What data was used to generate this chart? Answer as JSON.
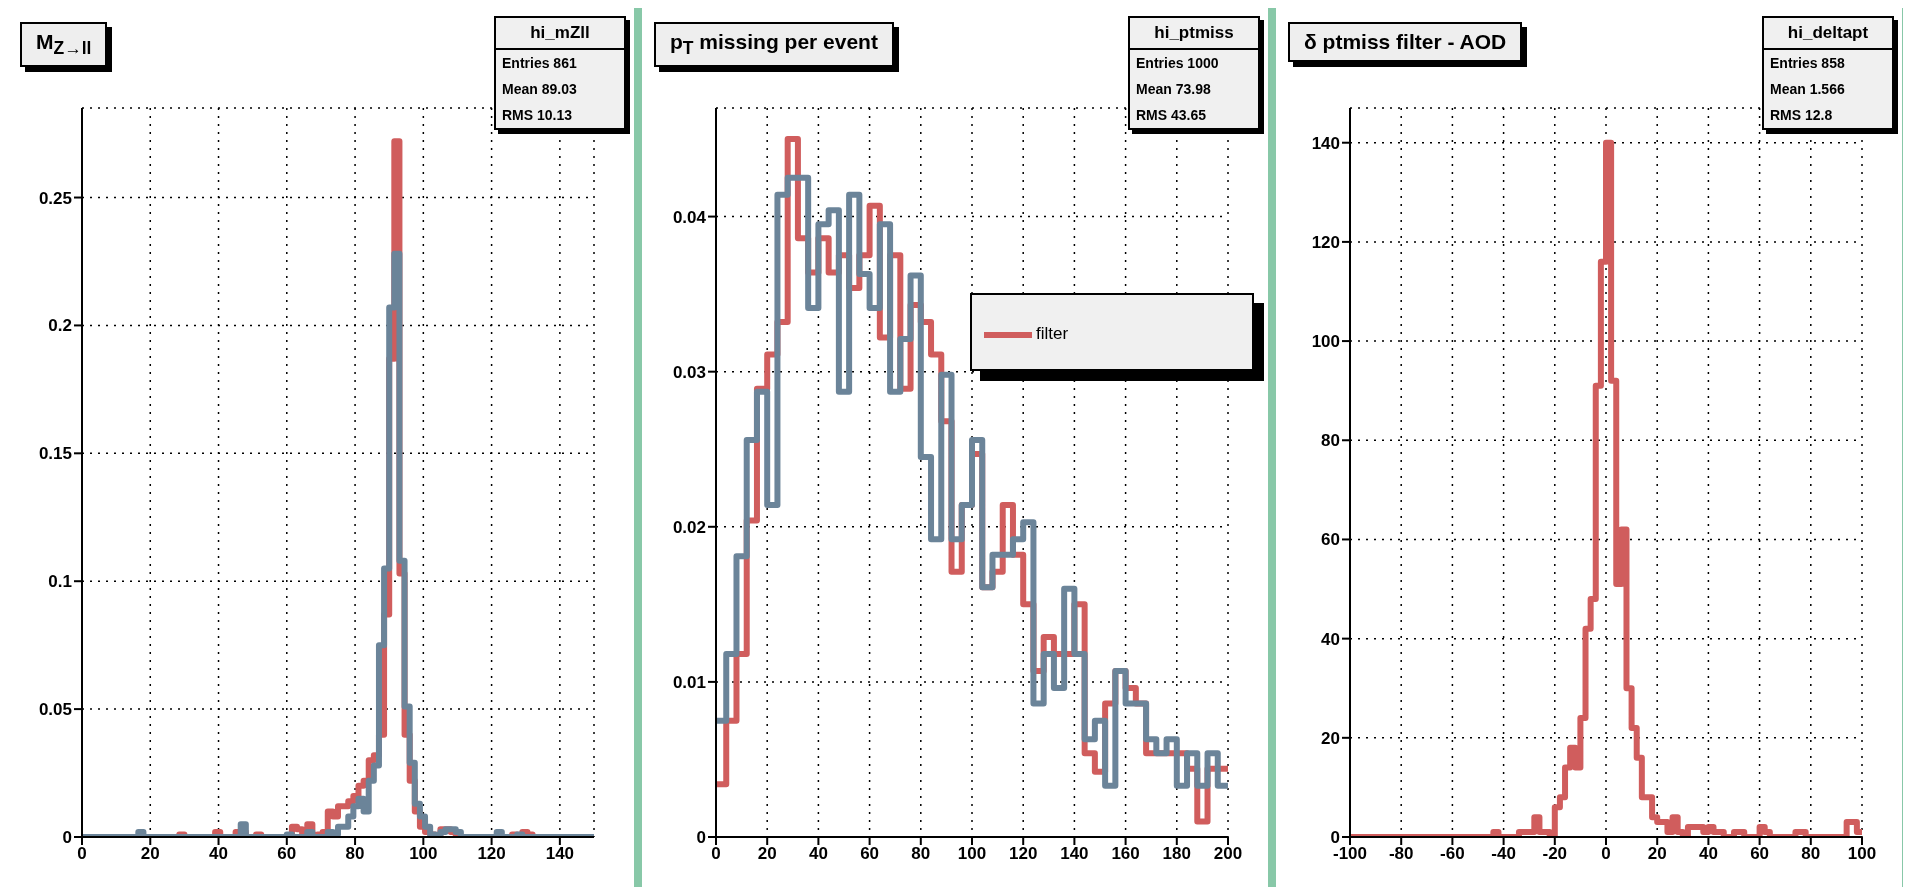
{
  "chart_data": [
    {
      "type": "histogram",
      "title": "M$_{Z→ll}$",
      "annotations": [
        "hi_mZll",
        "Entries 861",
        "Mean 89.03",
        "RMS 10.13"
      ],
      "xlim": [
        0,
        150
      ],
      "xticks": [
        0,
        20,
        40,
        60,
        80,
        100,
        120,
        140
      ],
      "ylim": [
        0,
        0.285
      ],
      "yticks": [
        0,
        0.05,
        0.1,
        0.15,
        0.2,
        0.25
      ],
      "grid": true,
      "bins": [
        0,
        1.5,
        3,
        4.5,
        6,
        7.5,
        9,
        10.5,
        12,
        13.5,
        15,
        16.5,
        18,
        19.5,
        21,
        22.5,
        24,
        25.5,
        27,
        28.5,
        30,
        31.5,
        33,
        34.5,
        36,
        37.5,
        39,
        40.5,
        42,
        43.5,
        45,
        46.5,
        48,
        49.5,
        51,
        52.5,
        54,
        55.5,
        57,
        58.5,
        60,
        61.5,
        63,
        64.5,
        66,
        67.5,
        69,
        70.5,
        72,
        73.5,
        75,
        76.5,
        78,
        79.5,
        81,
        82.5,
        84,
        85.5,
        87,
        88.5,
        90,
        91.5,
        93,
        94.5,
        96,
        97.5,
        99,
        100.5,
        102,
        103.5,
        105,
        106.5,
        108,
        109.5,
        111,
        112.5,
        114,
        115.5,
        117,
        118.5,
        120,
        121.5,
        123,
        124.5,
        126,
        127.5,
        129,
        130.5,
        132,
        133.5,
        135,
        136.5,
        138,
        139.5,
        141,
        142.5,
        144,
        145.5,
        147,
        148.5,
        150
      ],
      "series": [
        {
          "color": "#d05d5d",
          "values": [
            0,
            0,
            0,
            0,
            0,
            0,
            0,
            0,
            0,
            0,
            0,
            0,
            0,
            0,
            0,
            0,
            0,
            0,
            0,
            0.001,
            0,
            0,
            0,
            0,
            0,
            0,
            0.002,
            0,
            0,
            0,
            0.002,
            0.002,
            0,
            0,
            0.001,
            0,
            0,
            0,
            0,
            0,
            0,
            0.004,
            0.003,
            0,
            0.005,
            0,
            0.001,
            0.002,
            0.01,
            0.008,
            0.012,
            0.012,
            0.014,
            0.016,
            0.02,
            0.022,
            0.03,
            0.032,
            0.04,
            0.087,
            0.187,
            0.272,
            0.103,
            0.04,
            0.022,
            0.01,
            0.004,
            0.002,
            0.001,
            0,
            0.003,
            0.003,
            0.002,
            0,
            0,
            0,
            0,
            0,
            0,
            0,
            0,
            0,
            0,
            0,
            0.001,
            0,
            0.002,
            0.001,
            0,
            0,
            0,
            0,
            0,
            0,
            0,
            0,
            0,
            0,
            0,
            0
          ]
        },
        {
          "color": "#6b8499",
          "values": [
            0,
            0,
            0,
            0,
            0,
            0,
            0,
            0,
            0,
            0,
            0,
            0.002,
            0,
            0,
            0,
            0,
            0,
            0,
            0,
            0,
            0,
            0,
            0,
            0,
            0,
            0,
            0,
            0,
            0,
            0,
            0,
            0.005,
            0,
            0,
            0,
            0,
            0,
            0,
            0,
            0,
            0.001,
            0,
            0,
            0,
            0.002,
            0,
            0,
            0,
            0.002,
            0.001,
            0.004,
            0.004,
            0.008,
            0.012,
            0.015,
            0.01,
            0.022,
            0.028,
            0.075,
            0.105,
            0.207,
            0.228,
            0.108,
            0.051,
            0.029,
            0.013,
            0.008,
            0.004,
            0.001,
            0,
            0.002,
            0.003,
            0.003,
            0.002,
            0,
            0,
            0,
            0,
            0,
            0,
            0,
            0.002,
            0,
            0,
            0,
            0.001,
            0,
            0,
            0,
            0,
            0,
            0,
            0,
            0,
            0,
            0,
            0,
            0,
            0,
            0
          ]
        }
      ]
    },
    {
      "type": "histogram",
      "title": "p$_{T}$ missing per event",
      "annotations": [
        "hi_ptmiss",
        "Entries 1000",
        "Mean 73.98",
        "RMS 43.65"
      ],
      "xlim": [
        0,
        200
      ],
      "xticks": [
        0,
        20,
        40,
        60,
        80,
        100,
        120,
        140,
        160,
        180,
        200
      ],
      "ylim": [
        0,
        0.047
      ],
      "yticks": [
        0,
        0.01,
        0.02,
        0.03,
        0.04
      ],
      "grid": true,
      "legend": "top right",
      "bins": [
        0,
        4,
        8,
        12,
        16,
        20,
        24,
        28,
        32,
        36,
        40,
        44,
        48,
        52,
        56,
        60,
        64,
        68,
        72,
        76,
        80,
        84,
        88,
        92,
        96,
        100,
        104,
        108,
        112,
        116,
        120,
        124,
        128,
        132,
        136,
        140,
        144,
        148,
        152,
        156,
        160,
        164,
        168,
        172,
        176,
        180,
        184,
        188,
        192,
        196,
        200
      ],
      "series": [
        {
          "name": "filter",
          "color": "#d05d5d",
          "values": [
            0.0034,
            0.0075,
            0.0118,
            0.0204,
            0.0289,
            0.0311,
            0.0332,
            0.045,
            0.0386,
            0.0364,
            0.0386,
            0.0364,
            0.0375,
            0.0354,
            0.0375,
            0.0407,
            0.0322,
            0.0375,
            0.0289,
            0.0343,
            0.0332,
            0.0311,
            0.0268,
            0.0171,
            0.0214,
            0.0247,
            0.0161,
            0.0171,
            0.0214,
            0.0182,
            0.015,
            0.0107,
            0.0129,
            0.0118,
            0.0118,
            0.015,
            0.0054,
            0.0042,
            0.0086,
            0.0107,
            0.0096,
            0.0086,
            0.0054,
            0.0054,
            0.0054,
            0.0054,
            0.0044,
            0.001,
            0.0044,
            0.0044
          ]
        },
        {
          "color": "#6b8499",
          "values": [
            0.0075,
            0.0118,
            0.0181,
            0.0256,
            0.0287,
            0.0214,
            0.0414,
            0.0425,
            0.0425,
            0.0341,
            0.0395,
            0.0404,
            0.0287,
            0.0414,
            0.0363,
            0.0341,
            0.0395,
            0.0287,
            0.0321,
            0.0362,
            0.0245,
            0.0192,
            0.0298,
            0.0192,
            0.0214,
            0.0256,
            0.0161,
            0.0182,
            0.0182,
            0.0192,
            0.0203,
            0.0086,
            0.0118,
            0.0096,
            0.016,
            0.0118,
            0.0063,
            0.0075,
            0.0033,
            0.0107,
            0.0086,
            0.0086,
            0.0063,
            0.0054,
            0.0063,
            0.0033,
            0.0054,
            0.0033,
            0.0054,
            0.0033
          ]
        }
      ]
    },
    {
      "type": "histogram",
      "title": "δ ptmiss filter - AOD",
      "annotations": [
        "hi_deltapt",
        "Entries 858",
        "Mean 1.566",
        "RMS 12.8"
      ],
      "xlim": [
        -100,
        100
      ],
      "xticks": [
        -100,
        -80,
        -60,
        -40,
        -20,
        0,
        20,
        40,
        60,
        80,
        100
      ],
      "ylim": [
        0,
        147
      ],
      "yticks": [
        0,
        20,
        40,
        60,
        80,
        100,
        120,
        140
      ],
      "grid": true,
      "color": "#d05d5d",
      "bins": [
        -100,
        -98,
        -96,
        -94,
        -92,
        -90,
        -88,
        -86,
        -84,
        -82,
        -80,
        -78,
        -76,
        -74,
        -72,
        -70,
        -68,
        -66,
        -64,
        -62,
        -60,
        -58,
        -56,
        -54,
        -52,
        -50,
        -48,
        -46,
        -44,
        -42,
        -40,
        -38,
        -36,
        -34,
        -32,
        -30,
        -28,
        -26,
        -24,
        -22,
        -20,
        -18,
        -16,
        -14,
        -12,
        -10,
        -8,
        -6,
        -4,
        -2,
        0,
        2,
        4,
        6,
        8,
        10,
        12,
        14,
        16,
        18,
        20,
        22,
        24,
        26,
        28,
        30,
        32,
        34,
        36,
        38,
        40,
        42,
        44,
        46,
        48,
        50,
        52,
        54,
        56,
        58,
        60,
        62,
        64,
        66,
        68,
        70,
        72,
        74,
        76,
        78,
        80,
        82,
        84,
        86,
        88,
        90,
        92,
        94,
        96,
        98,
        100
      ],
      "values": [
        0,
        0,
        0,
        0,
        0,
        0,
        0,
        0,
        0,
        0,
        0,
        0,
        0,
        0,
        0,
        0,
        0,
        0,
        0,
        0,
        0,
        0,
        0,
        0,
        0,
        0,
        0,
        0,
        1,
        0,
        0,
        0,
        0,
        1,
        1,
        1,
        4,
        1,
        1,
        0,
        6,
        8,
        14,
        18,
        14,
        24,
        42,
        48,
        91,
        116,
        140,
        92,
        51,
        62,
        30,
        22,
        16,
        8,
        8,
        4,
        3,
        3,
        1,
        4,
        1,
        0,
        2,
        2,
        2,
        1,
        2,
        1,
        1,
        0,
        0,
        1,
        1,
        0,
        0,
        0,
        2,
        1,
        0,
        0,
        0,
        0,
        0,
        1,
        1,
        0,
        0,
        0,
        0,
        0,
        0,
        0,
        0,
        3,
        3,
        1
      ]
    }
  ]
}
